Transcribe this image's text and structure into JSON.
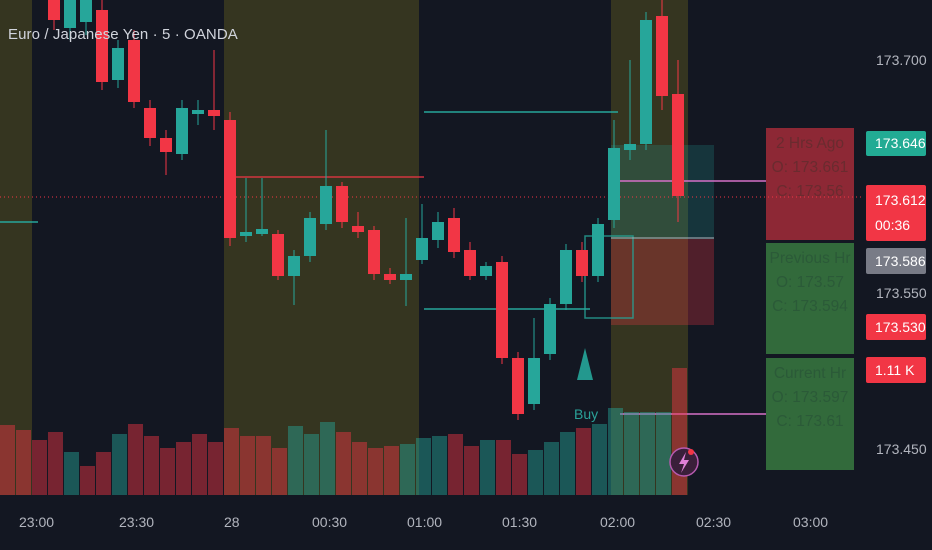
{
  "header": {
    "title": "Euro / Japanese Yen · 5 · OANDA"
  },
  "price_axis": {
    "labels": [
      "173.700",
      "173.550",
      "173.450"
    ]
  },
  "price_tags": {
    "tag1": "173.646",
    "tag2_price": "173.612",
    "tag2_timer": "00:36",
    "tag3": "173.586",
    "tag4": "173.530",
    "tag5": "1.11 K"
  },
  "time_axis": {
    "labels": [
      "23:00",
      "23:30",
      "28",
      "00:30",
      "01:00",
      "01:30",
      "02:00",
      "02:30",
      "03:00"
    ]
  },
  "info_boxes": {
    "two_hrs_ago": {
      "title": "2 Hrs Ago",
      "open": "O: 173.661",
      "close": "C: 173.56"
    },
    "previous_hr": {
      "title": "Previous Hr",
      "open": "O: 173.57",
      "close": "C: 173.594"
    },
    "current_hr": {
      "title": "Current Hr",
      "open": "O: 173.597",
      "close": "C: 173.61"
    }
  },
  "signal": {
    "label": "Buy"
  },
  "icons": {
    "alert": "lightning-icon",
    "signal": "buy-arrow-icon"
  },
  "colors": {
    "up": "#26a69a",
    "down": "#f23645",
    "highlight": "#3d3a1c",
    "tag_up": "#22ab94",
    "tag_down": "#f23645",
    "tag_gray": "#787b86"
  }
}
